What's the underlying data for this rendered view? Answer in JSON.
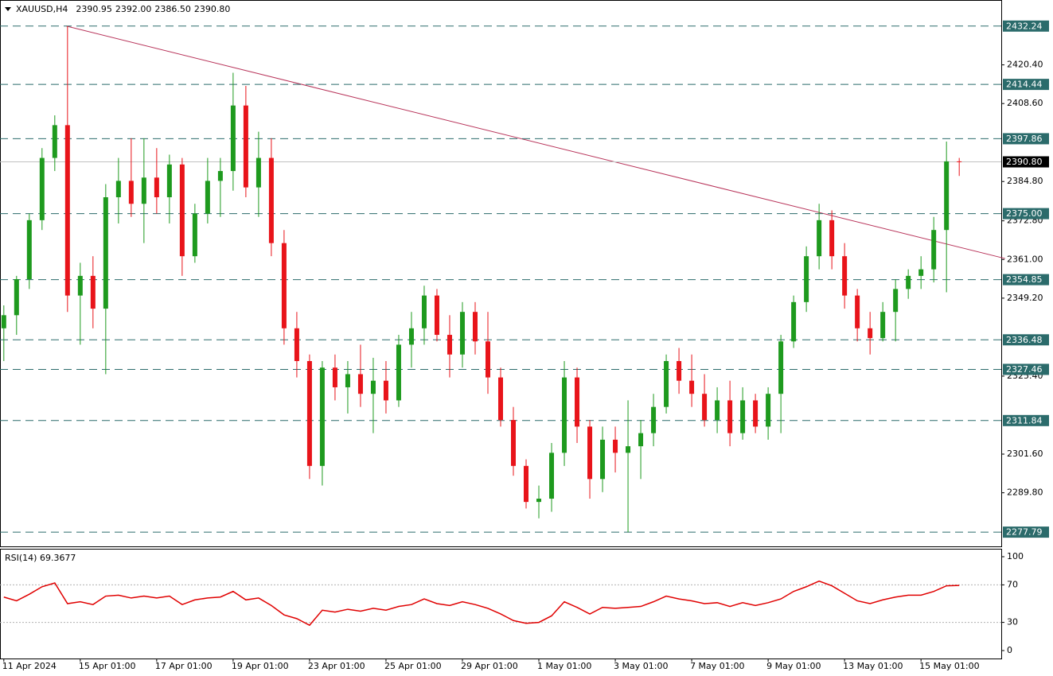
{
  "chart_data": {
    "type": "candlestick",
    "title": "XAUUSD,H4",
    "header_values": [
      "2390.95",
      "2392.00",
      "2386.50",
      "2390.80"
    ],
    "bull_color": "#1e9a1e",
    "bear_color": "#e8141a",
    "open": [
      2340,
      2344,
      2355,
      2373,
      2392,
      2402,
      2350,
      2356,
      2346,
      2380,
      2385,
      2378,
      2386,
      2380,
      2390,
      2362,
      2375,
      2385,
      2388,
      2408,
      2383,
      2392,
      2366,
      2340,
      2330,
      2298,
      2328,
      2322,
      2326,
      2320,
      2324,
      2318,
      2335,
      2340,
      2350,
      2338,
      2332,
      2345,
      2336,
      2325,
      2312,
      2298,
      2287,
      2288,
      2302,
      2325,
      2310,
      2294,
      2306,
      2302,
      2304,
      2308,
      2316,
      2330,
      2324,
      2320,
      2312,
      2318,
      2308,
      2318,
      2310,
      2320,
      2336,
      2348,
      2362,
      2373,
      2362,
      2350,
      2340,
      2337,
      2345,
      2352,
      2356,
      2358,
      2370,
      2390.95
    ],
    "high": [
      2347,
      2356,
      2375,
      2395,
      2405,
      2432.24,
      2360,
      2362,
      2384,
      2392,
      2398,
      2398,
      2395,
      2393,
      2392,
      2378,
      2392,
      2392,
      2418,
      2414,
      2400,
      2398,
      2370,
      2345,
      2332,
      2330,
      2332,
      2330,
      2335,
      2331,
      2330,
      2338,
      2345,
      2353,
      2352,
      2344,
      2348,
      2348,
      2345,
      2328,
      2316,
      2300,
      2292,
      2305,
      2330,
      2328,
      2312,
      2310,
      2310,
      2318,
      2312,
      2320,
      2332,
      2334,
      2332,
      2326,
      2322,
      2324,
      2322,
      2320,
      2322,
      2338,
      2350,
      2365,
      2378,
      2376,
      2366,
      2352,
      2345,
      2348,
      2355,
      2358,
      2362,
      2374,
      2397,
      2392.0
    ],
    "low": [
      2330,
      2338,
      2352,
      2370,
      2388,
      2345,
      2335,
      2340,
      2326,
      2372,
      2374,
      2366,
      2375,
      2372,
      2356,
      2360,
      2372,
      2374,
      2382,
      2380,
      2374,
      2362,
      2335,
      2325,
      2294,
      2292,
      2318,
      2314,
      2316,
      2308,
      2314,
      2316,
      2328,
      2335,
      2336,
      2325,
      2328,
      2332,
      2320,
      2310,
      2295,
      2285,
      2282,
      2284,
      2298,
      2305,
      2288,
      2290,
      2296,
      2277.79,
      2294,
      2304,
      2314,
      2320,
      2316,
      2310,
      2308,
      2304,
      2306,
      2308,
      2306,
      2308,
      2334,
      2345,
      2358,
      2358,
      2346,
      2336,
      2332,
      2336,
      2336,
      2349,
      2352,
      2354,
      2351,
      2386.5
    ],
    "close": [
      2344,
      2355,
      2373,
      2392,
      2402,
      2350,
      2356,
      2346,
      2380,
      2385,
      2378,
      2386,
      2380,
      2390,
      2362,
      2375,
      2385,
      2388,
      2408,
      2383,
      2392,
      2366,
      2340,
      2330,
      2298,
      2328,
      2322,
      2326,
      2320,
      2324,
      2318,
      2335,
      2340,
      2350,
      2338,
      2332,
      2345,
      2336,
      2325,
      2312,
      2298,
      2287,
      2288,
      2302,
      2325,
      2310,
      2294,
      2306,
      2302,
      2304,
      2308,
      2316,
      2330,
      2324,
      2320,
      2312,
      2318,
      2308,
      2318,
      2310,
      2320,
      2336,
      2348,
      2362,
      2373,
      2362,
      2350,
      2340,
      2337,
      2345,
      2352,
      2356,
      2358,
      2370,
      2390.95,
      2390.8
    ],
    "xlim": [
      -0.3,
      78.3
    ],
    "ylim": [
      2273.2,
      2440.2
    ],
    "xticks": [
      {
        "value": 0,
        "label": "11 Apr 2024"
      },
      {
        "value": 6,
        "label": "15 Apr 01:00"
      },
      {
        "value": 12,
        "label": "17 Apr 01:00"
      },
      {
        "value": 18,
        "label": "19 Apr 01:00"
      },
      {
        "value": 24,
        "label": "23 Apr 01:00"
      },
      {
        "value": 30,
        "label": "25 Apr 01:00"
      },
      {
        "value": 36,
        "label": "29 Apr 01:00"
      },
      {
        "value": 42,
        "label": "1 May 01:00"
      },
      {
        "value": 48,
        "label": "3 May 01:00"
      },
      {
        "value": 54,
        "label": "7 May 01:00"
      },
      {
        "value": 60,
        "label": "9 May 01:00"
      },
      {
        "value": 66,
        "label": "13 May 01:00"
      },
      {
        "value": 72,
        "label": "15 May 01:00"
      }
    ],
    "yticks": [
      {
        "value": 2420.4,
        "label": "2420.40"
      },
      {
        "value": 2408.6,
        "label": "2408.60"
      },
      {
        "value": 2384.8,
        "label": "2384.80"
      },
      {
        "value": 2372.8,
        "label": "2372.80"
      },
      {
        "value": 2361.0,
        "label": "2361.00"
      },
      {
        "value": 2349.2,
        "label": "2349.20"
      },
      {
        "value": 2325.4,
        "label": "2325.40"
      },
      {
        "value": 2301.6,
        "label": "2301.60"
      },
      {
        "value": 2289.8,
        "label": "2289.80"
      }
    ],
    "levels": [
      {
        "value": 2432.24,
        "label": "2432.24"
      },
      {
        "value": 2414.44,
        "label": "2414.44"
      },
      {
        "value": 2397.86,
        "label": "2397.86"
      },
      {
        "value": 2375.0,
        "label": "2375.00"
      },
      {
        "value": 2354.85,
        "label": "2354.85"
      },
      {
        "value": 2336.48,
        "label": "2336.48"
      },
      {
        "value": 2327.46,
        "label": "2327.46"
      },
      {
        "value": 2311.84,
        "label": "2311.84"
      },
      {
        "value": 2277.79,
        "label": "2277.79"
      }
    ],
    "level_color": "#2b6b6b",
    "last_price": {
      "value": 2390.8,
      "label": "2390.80"
    },
    "trendline": {
      "x": [
        4.9,
        78.6
      ],
      "y": [
        2432.24,
        2361.3
      ],
      "color": "#b8345a"
    },
    "rsi": {
      "label": "RSI(14) 69.3677",
      "color": "#e00000",
      "values": [
        57,
        53,
        60,
        68,
        72,
        50,
        52,
        49,
        58,
        59,
        56,
        58,
        56,
        58,
        49,
        54,
        56,
        57,
        63,
        54,
        56,
        48,
        38,
        34,
        27,
        43,
        41,
        44,
        42,
        45,
        43,
        47,
        49,
        55,
        50,
        48,
        52,
        49,
        45,
        39,
        32,
        29,
        30,
        37,
        52,
        46,
        39,
        46,
        45,
        46,
        47,
        52,
        58,
        55,
        53,
        50,
        51,
        47,
        51,
        48,
        51,
        55,
        63,
        68,
        74,
        69,
        61,
        53,
        50,
        54,
        57,
        59,
        59,
        63,
        69,
        69.37
      ],
      "ylim": [
        0,
        100
      ],
      "yticks": [
        100,
        70,
        30,
        0
      ],
      "levels": [
        70,
        30
      ]
    }
  }
}
